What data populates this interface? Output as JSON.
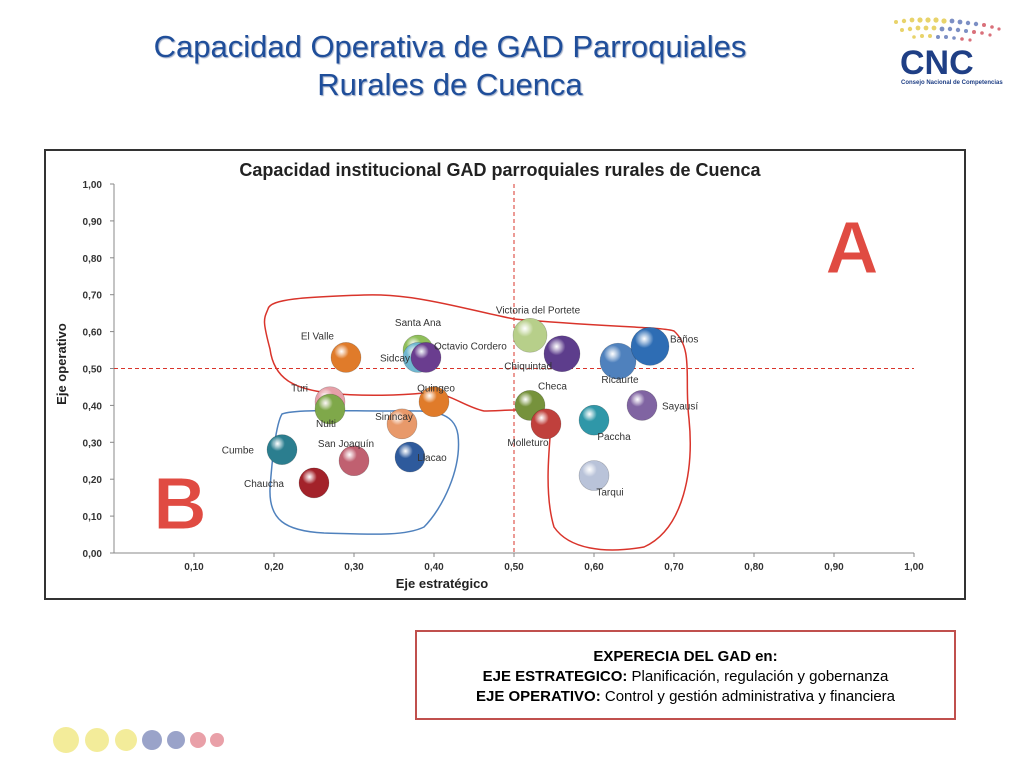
{
  "slide": {
    "title_line1": "Capacidad Operativa de GAD Parroquiales",
    "title_line2": "Rurales de Cuenca"
  },
  "logo": {
    "text": "CNC",
    "subtitle": "Consejo Nacional de Competencias"
  },
  "note": {
    "line1": "EXPERECIA DEL GAD en:",
    "line2_label": "EJE ESTRATEGICO:",
    "line2_text": " Planificación, regulación y gobernanza",
    "line3_label": "EJE OPERATIVO:",
    "line3_text": " Control y gestión administrativa y financiera"
  },
  "colors": {
    "title": "#1f4e9a",
    "region_a": "#d9342b",
    "region_b": "#4f81bd",
    "note_border": "#c0504d"
  },
  "chart_data": {
    "type": "scatter",
    "title": "Capacidad institucional GAD parroquiales rurales de Cuenca",
    "xlabel": "Eje estratégico",
    "ylabel": "Eje operativo",
    "xlim": [
      0,
      1
    ],
    "ylim": [
      0,
      1
    ],
    "x_ticks": [
      "0,10",
      "0,20",
      "0,30",
      "0,40",
      "0,50",
      "0,60",
      "0,70",
      "0,80",
      "0,90",
      "1,00"
    ],
    "y_ticks": [
      "0,00",
      "0,10",
      "0,20",
      "0,30",
      "0,40",
      "0,50",
      "0,60",
      "0,70",
      "0,80",
      "0,90",
      "1,00"
    ],
    "reference_lines": {
      "x": 0.5,
      "y": 0.5
    },
    "region_labels": [
      "A",
      "B"
    ],
    "points": [
      {
        "name": "El Valle",
        "x": 0.29,
        "y": 0.53,
        "color": "#e07b2a"
      },
      {
        "name": "Santa Ana",
        "x": 0.38,
        "y": 0.55,
        "color": "#8fbf5a"
      },
      {
        "name": "Sidcay",
        "x": 0.38,
        "y": 0.53,
        "color": "#6fb7d0"
      },
      {
        "name": "Octavio Cordero",
        "x": 0.39,
        "y": 0.53,
        "color": "#6a3d8f"
      },
      {
        "name": "Victoria del Portete",
        "x": 0.52,
        "y": 0.59,
        "color": "#b7cf8a"
      },
      {
        "name": "Chiquintad",
        "x": 0.56,
        "y": 0.54,
        "color": "#5d3d8c"
      },
      {
        "name": "Ricaurte",
        "x": 0.63,
        "y": 0.52,
        "color": "#4f81bd"
      },
      {
        "name": "Baños",
        "x": 0.67,
        "y": 0.56,
        "color": "#2e6db4"
      },
      {
        "name": "Turi",
        "x": 0.27,
        "y": 0.41,
        "color": "#e6a0a8"
      },
      {
        "name": "Nulti",
        "x": 0.27,
        "y": 0.39,
        "color": "#7fa84a"
      },
      {
        "name": "Quingeo",
        "x": 0.4,
        "y": 0.41,
        "color": "#e07b2a"
      },
      {
        "name": "Checa",
        "x": 0.52,
        "y": 0.4,
        "color": "#76923c"
      },
      {
        "name": "Sinincay",
        "x": 0.36,
        "y": 0.35,
        "color": "#e8996a"
      },
      {
        "name": "Sayausí",
        "x": 0.66,
        "y": 0.4,
        "color": "#8064a2"
      },
      {
        "name": "Molleturo",
        "x": 0.54,
        "y": 0.35,
        "color": "#c0403c"
      },
      {
        "name": "Paccha",
        "x": 0.6,
        "y": 0.36,
        "color": "#2f97a8"
      },
      {
        "name": "Cumbe",
        "x": 0.21,
        "y": 0.28,
        "color": "#2b7e8f"
      },
      {
        "name": "San Joaquín",
        "x": 0.3,
        "y": 0.25,
        "color": "#c06070"
      },
      {
        "name": "Llacao",
        "x": 0.37,
        "y": 0.26,
        "color": "#2e5a9c"
      },
      {
        "name": "Chaucha",
        "x": 0.25,
        "y": 0.19,
        "color": "#a3222a"
      },
      {
        "name": "Tarqui",
        "x": 0.6,
        "y": 0.21,
        "color": "#b9c3d9"
      }
    ]
  }
}
